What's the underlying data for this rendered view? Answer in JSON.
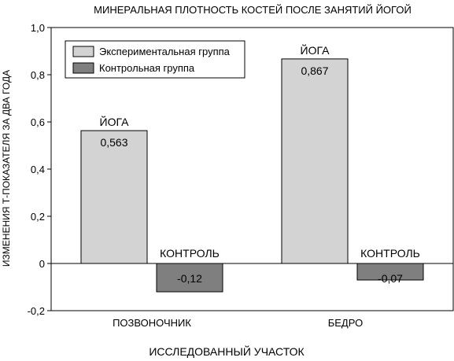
{
  "chart_data": {
    "type": "bar",
    "title": "МИНЕРАЛЬНАЯ ПЛОТНОСТЬ КОСТЕЙ ПОСЛЕ ЗАНЯТИЙ ЙОГОЙ",
    "xlabel": "ИССЛЕДОВАННЫЙ УЧАСТОК",
    "ylabel": "ИЗМЕНЕНИЯ Т-ПОКАЗАТЕЛЯ ЗА ДВА ГОДА",
    "categories": [
      "ПОЗВОНОЧНИК",
      "БЕДРО"
    ],
    "ylim": [
      -0.2,
      1.0
    ],
    "yticks": [
      {
        "value": 1.0,
        "label": "1,0"
      },
      {
        "value": 0.8,
        "label": "0,8"
      },
      {
        "value": 0.6,
        "label": "0,6"
      },
      {
        "value": 0.4,
        "label": "0,4"
      },
      {
        "value": 0.2,
        "label": "0,2"
      },
      {
        "value": 0.0,
        "label": "0"
      },
      {
        "value": -0.2,
        "label": "-0,2"
      }
    ],
    "grid": false,
    "legend_position": "top-left",
    "series": [
      {
        "name": "Экспериментальная группа",
        "color": "#d3d3d3",
        "bar_label": "ЙОГА",
        "values": [
          0.563,
          0.867
        ],
        "value_labels": [
          "0,563",
          "0,867"
        ]
      },
      {
        "name": "Контрольная группа",
        "color": "#7f7f7f",
        "bar_label": "КОНТРОЛЬ",
        "values": [
          -0.12,
          -0.07
        ],
        "value_labels": [
          "-0,12",
          "-0,07"
        ]
      }
    ]
  }
}
